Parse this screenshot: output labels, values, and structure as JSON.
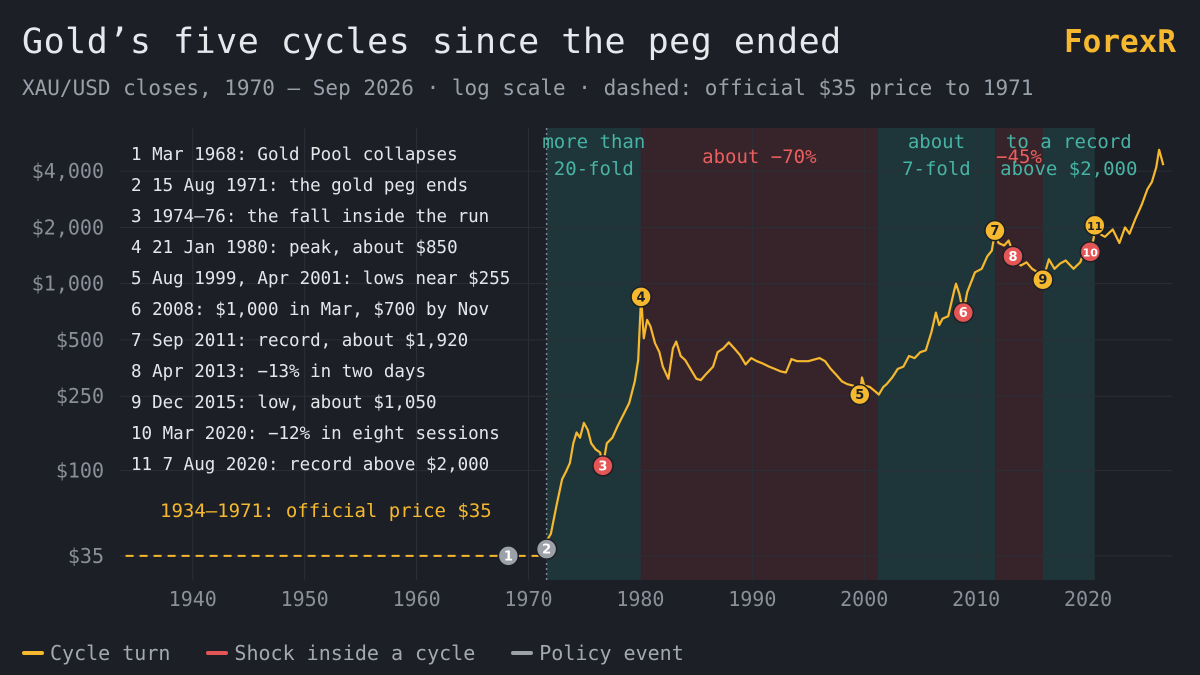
{
  "header": {
    "title": "Gold’s five cycles since the peg ended",
    "brand": "ForexR",
    "subtitle": "XAU/USD closes, 1970 – Sep 2026 · log scale · dashed: official $35 price to 1971"
  },
  "colors": {
    "background": "#1c1f26",
    "gold": "#f5b82e",
    "red": "#e45555",
    "gray": "#9ca0a8",
    "teal_band": "#1f3b3e",
    "red_band": "#3b262c",
    "teal_text": "#47b3a4",
    "red_text": "#ec5f5f",
    "grid": "#2b2f37",
    "axis_text": "#8a8f99"
  },
  "chart_data": {
    "type": "line",
    "title": "Gold’s five cycles since the peg ended",
    "xlabel": "",
    "ylabel": "",
    "scale_y": "log",
    "xlim": [
      1933.5,
      2027.5
    ],
    "ylim": [
      26,
      6800
    ],
    "grid": true,
    "x_ticks": [
      1940,
      1950,
      1960,
      1970,
      1980,
      1990,
      2000,
      2010,
      2020
    ],
    "y_ticks": [
      {
        "value": 35,
        "label": "$35"
      },
      {
        "value": 100,
        "label": "$100"
      },
      {
        "value": 250,
        "label": "$250"
      },
      {
        "value": 500,
        "label": "$500"
      },
      {
        "value": 1000,
        "label": "$1,000"
      },
      {
        "value": 2000,
        "label": "$2,000"
      },
      {
        "value": 4000,
        "label": "$4,000"
      }
    ],
    "official_price": {
      "from": 1934,
      "to": 1971.6,
      "value": 35,
      "label": "1934–1971: official price $35"
    },
    "peg_end_x": 1971.62,
    "series": [
      {
        "color": "#f5b82e",
        "points": [
          [
            1971.62,
            42
          ],
          [
            1972.0,
            46
          ],
          [
            1972.5,
            65
          ],
          [
            1973.0,
            90
          ],
          [
            1973.4,
            100
          ],
          [
            1973.7,
            110
          ],
          [
            1974.0,
            140
          ],
          [
            1974.3,
            160
          ],
          [
            1974.6,
            150
          ],
          [
            1974.95,
            180
          ],
          [
            1975.3,
            165
          ],
          [
            1975.6,
            140
          ],
          [
            1976.0,
            130
          ],
          [
            1976.4,
            125
          ],
          [
            1976.65,
            106
          ],
          [
            1977.0,
            140
          ],
          [
            1977.5,
            150
          ],
          [
            1978.0,
            175
          ],
          [
            1978.5,
            200
          ],
          [
            1979.0,
            230
          ],
          [
            1979.5,
            300
          ],
          [
            1979.8,
            390
          ],
          [
            1980.06,
            850
          ],
          [
            1980.3,
            510
          ],
          [
            1980.6,
            640
          ],
          [
            1980.9,
            590
          ],
          [
            1981.3,
            480
          ],
          [
            1981.7,
            430
          ],
          [
            1982.0,
            360
          ],
          [
            1982.5,
            310
          ],
          [
            1982.9,
            450
          ],
          [
            1983.2,
            490
          ],
          [
            1983.6,
            410
          ],
          [
            1984.0,
            390
          ],
          [
            1984.6,
            340
          ],
          [
            1985.0,
            310
          ],
          [
            1985.4,
            305
          ],
          [
            1985.9,
            330
          ],
          [
            1986.5,
            360
          ],
          [
            1986.9,
            430
          ],
          [
            1987.4,
            450
          ],
          [
            1987.9,
            485
          ],
          [
            1988.4,
            450
          ],
          [
            1988.9,
            415
          ],
          [
            1989.4,
            370
          ],
          [
            1989.9,
            400
          ],
          [
            1990.4,
            385
          ],
          [
            1990.9,
            375
          ],
          [
            1991.5,
            360
          ],
          [
            1992.0,
            350
          ],
          [
            1992.5,
            340
          ],
          [
            1993.0,
            335
          ],
          [
            1993.5,
            395
          ],
          [
            1994.0,
            385
          ],
          [
            1995.0,
            385
          ],
          [
            1996.0,
            400
          ],
          [
            1996.5,
            385
          ],
          [
            1997.0,
            350
          ],
          [
            1997.5,
            325
          ],
          [
            1998.0,
            300
          ],
          [
            1998.5,
            290
          ],
          [
            1999.0,
            285
          ],
          [
            1999.6,
            255
          ],
          [
            1999.8,
            315
          ],
          [
            2000.0,
            285
          ],
          [
            2000.5,
            280
          ],
          [
            2001.0,
            265
          ],
          [
            2001.3,
            255
          ],
          [
            2001.7,
            280
          ],
          [
            2002.0,
            290
          ],
          [
            2002.5,
            315
          ],
          [
            2003.0,
            350
          ],
          [
            2003.5,
            360
          ],
          [
            2004.0,
            410
          ],
          [
            2004.5,
            400
          ],
          [
            2005.0,
            430
          ],
          [
            2005.5,
            440
          ],
          [
            2006.0,
            550
          ],
          [
            2006.4,
            700
          ],
          [
            2006.7,
            600
          ],
          [
            2007.0,
            650
          ],
          [
            2007.5,
            670
          ],
          [
            2008.0,
            900
          ],
          [
            2008.2,
            1000
          ],
          [
            2008.5,
            880
          ],
          [
            2008.85,
            700
          ],
          [
            2009.2,
            900
          ],
          [
            2009.9,
            1150
          ],
          [
            2010.5,
            1200
          ],
          [
            2011.0,
            1400
          ],
          [
            2011.4,
            1500
          ],
          [
            2011.68,
            1900
          ],
          [
            2012.0,
            1650
          ],
          [
            2012.5,
            1600
          ],
          [
            2012.9,
            1700
          ],
          [
            2013.1,
            1580
          ],
          [
            2013.29,
            1400
          ],
          [
            2013.6,
            1300
          ],
          [
            2014.0,
            1250
          ],
          [
            2014.5,
            1300
          ],
          [
            2015.0,
            1200
          ],
          [
            2015.5,
            1150
          ],
          [
            2015.96,
            1050
          ],
          [
            2016.5,
            1350
          ],
          [
            2017.0,
            1200
          ],
          [
            2017.5,
            1280
          ],
          [
            2018.0,
            1330
          ],
          [
            2018.7,
            1200
          ],
          [
            2019.3,
            1300
          ],
          [
            2019.7,
            1500
          ],
          [
            2020.0,
            1550
          ],
          [
            2020.2,
            1480
          ],
          [
            2020.5,
            1750
          ],
          [
            2020.6,
            2050
          ],
          [
            2021.0,
            1850
          ],
          [
            2021.5,
            1780
          ],
          [
            2022.2,
            1950
          ],
          [
            2022.8,
            1650
          ],
          [
            2023.3,
            2000
          ],
          [
            2023.7,
            1850
          ],
          [
            2024.2,
            2200
          ],
          [
            2024.8,
            2650
          ],
          [
            2025.3,
            3200
          ],
          [
            2025.7,
            3500
          ],
          [
            2026.1,
            4200
          ],
          [
            2026.35,
            5200
          ],
          [
            2026.55,
            4700
          ],
          [
            2026.72,
            4300
          ]
        ]
      }
    ],
    "bands": [
      {
        "from": 1971.62,
        "to": 1980.06,
        "kind": "rise",
        "label_lines": [
          "more than",
          "20-fold"
        ]
      },
      {
        "from": 1980.06,
        "to": 2001.2,
        "kind": "fall",
        "label_lines": [
          "about −70%"
        ]
      },
      {
        "from": 2001.2,
        "to": 2011.7,
        "kind": "rise",
        "label_lines": [
          "about",
          "7-fold"
        ]
      },
      {
        "from": 2011.7,
        "to": 2015.96,
        "kind": "fall",
        "label_lines": [
          "−45%"
        ]
      },
      {
        "from": 2015.96,
        "to": 2020.6,
        "kind": "rise",
        "label_lines": [
          "to a record",
          "above $2,000"
        ]
      }
    ],
    "markers": [
      {
        "n": "1",
        "x": 1968.2,
        "y": 35,
        "kind": "policy"
      },
      {
        "n": "2",
        "x": 1971.62,
        "y": 38,
        "kind": "policy"
      },
      {
        "n": "3",
        "x": 1976.65,
        "y": 106,
        "kind": "shock"
      },
      {
        "n": "4",
        "x": 1980.06,
        "y": 850,
        "kind": "turn"
      },
      {
        "n": "5",
        "x": 1999.6,
        "y": 255,
        "kind": "turn"
      },
      {
        "n": "6",
        "x": 2008.85,
        "y": 700,
        "kind": "shock"
      },
      {
        "n": "7",
        "x": 2011.68,
        "y": 1920,
        "kind": "turn"
      },
      {
        "n": "8",
        "x": 2013.29,
        "y": 1400,
        "kind": "shock"
      },
      {
        "n": "9",
        "x": 2015.96,
        "y": 1050,
        "kind": "turn"
      },
      {
        "n": "10",
        "x": 2020.2,
        "y": 1480,
        "kind": "shock"
      },
      {
        "n": "11",
        "x": 2020.6,
        "y": 2050,
        "kind": "turn"
      }
    ],
    "event_list": [
      "1 Mar 1968: Gold Pool collapses",
      "2 15 Aug 1971: the gold peg ends",
      "3 1974–76: the fall inside the run",
      "4 21 Jan 1980: peak, about $850",
      "5 Aug 1999, Apr 2001: lows near $255",
      "6 2008: $1,000 in Mar, $700 by Nov",
      "7 Sep 2011: record, about $1,920",
      "8 Apr 2013: −13% in two days",
      "9 Dec 2015: low, about $1,050",
      "10 Mar 2020: −12% in eight sessions",
      "11 7 Aug 2020: record above $2,000"
    ]
  },
  "legend": [
    {
      "label": "Cycle turn",
      "color": "#f5b82e"
    },
    {
      "label": "Shock inside a cycle",
      "color": "#e45555"
    },
    {
      "label": "Policy event",
      "color": "#9ca0a8"
    }
  ]
}
